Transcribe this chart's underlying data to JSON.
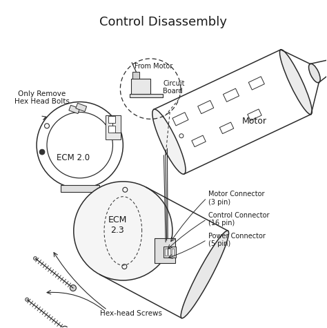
{
  "title": "Control Disassembly",
  "title_fontsize": 13,
  "bg_color": "#ffffff",
  "line_color": "#2a2a2a",
  "text_color": "#1a1a1a",
  "labels": {
    "only_remove": "Only Remove\nHex Head Bolts",
    "ecm20": "ECM 2.0",
    "from_motor": "From Motor",
    "circuit_board": "Circuit\nBoard",
    "motor": "Motor",
    "ecm23": "ECM\n2.3",
    "motor_connector": "Motor Connector\n(3 pin)",
    "control_connector": "Control Connector\n(16 pin)",
    "power_connector": "Power Connector\n(5 pin)",
    "hex_screws": "Hex-head Screws"
  }
}
